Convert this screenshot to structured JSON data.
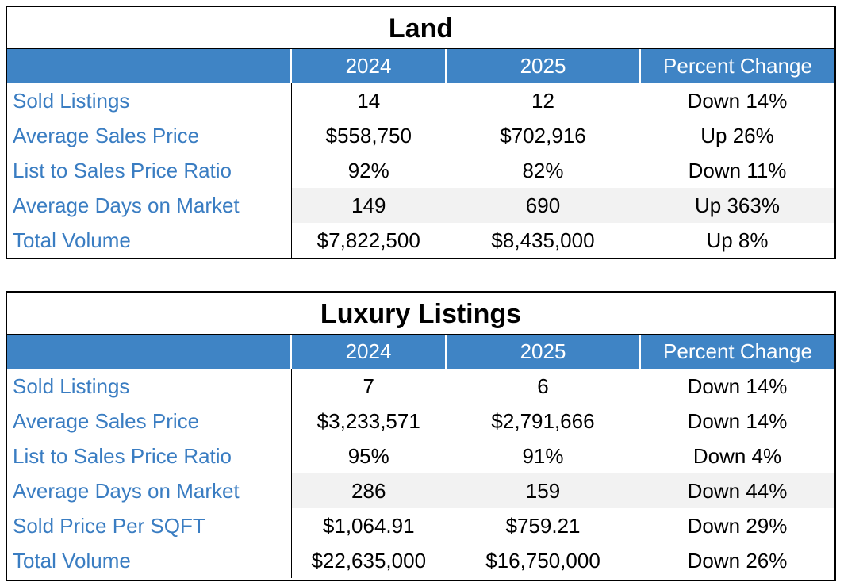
{
  "tables": [
    {
      "title": "Land",
      "headers": [
        "",
        "2024",
        "2025",
        "Percent Change"
      ],
      "rows": [
        {
          "label": "Sold Listings",
          "y2024": "14",
          "y2025": "12",
          "change": "Down 14%"
        },
        {
          "label": "Average Sales Price",
          "y2024": "$558,750",
          "y2025": "$702,916",
          "change": "Up 26%"
        },
        {
          "label": "List to Sales Price Ratio",
          "y2024": "92%",
          "y2025": "82%",
          "change": "Down 11%"
        },
        {
          "label": "Average Days on Market",
          "y2024": "149",
          "y2025": "690",
          "change": "Up 363%"
        },
        {
          "label": "Total Volume",
          "y2024": "$7,822,500",
          "y2025": "$8,435,000",
          "change": "Up 8%"
        }
      ]
    },
    {
      "title": "Luxury Listings",
      "headers": [
        "",
        "2024",
        "2025",
        "Percent Change"
      ],
      "rows": [
        {
          "label": "Sold Listings",
          "y2024": "7",
          "y2025": "6",
          "change": "Down 14%"
        },
        {
          "label": "Average Sales Price",
          "y2024": "$3,233,571",
          "y2025": "$2,791,666",
          "change": "Down 14%"
        },
        {
          "label": "List to Sales Price Ratio",
          "y2024": "95%",
          "y2025": "91%",
          "change": "Down 4%"
        },
        {
          "label": "Average Days on Market",
          "y2024": "286",
          "y2025": "159",
          "change": "Down 44%"
        },
        {
          "label": "Sold Price Per SQFT",
          "y2024": "$1,064.91",
          "y2025": "$759.21",
          "change": "Down 29%"
        },
        {
          "label": "Total Volume",
          "y2024": "$22,635,000",
          "y2025": "$16,750,000",
          "change": "Down 26%"
        }
      ]
    }
  ],
  "colors": {
    "header_bg": "#3f84c5",
    "label_text": "#3a7dc2",
    "row_shade": "#f2f2f2"
  }
}
